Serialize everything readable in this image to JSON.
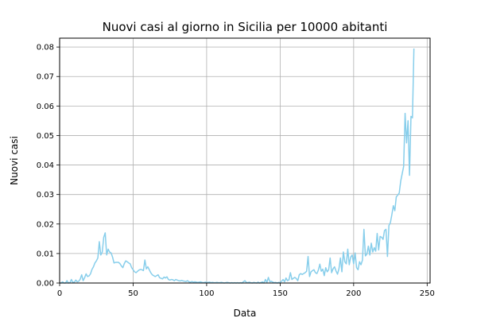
{
  "chart_data": {
    "type": "line",
    "title": "Nuovi casi al giorno in Sicilia per 10000 abitanti",
    "xlabel": "Data",
    "ylabel": "Nuovi casi",
    "xlim": [
      0,
      252
    ],
    "ylim": [
      0,
      0.083
    ],
    "grid": true,
    "x_ticks": [
      0,
      50,
      100,
      150,
      200,
      250
    ],
    "y_ticks": [
      0.0,
      0.01,
      0.02,
      0.03,
      0.04,
      0.05,
      0.06,
      0.07,
      0.08
    ],
    "x_tick_labels": [
      "0",
      "50",
      "100",
      "150",
      "200",
      "250"
    ],
    "y_tick_labels": [
      "0.00",
      "0.01",
      "0.02",
      "0.03",
      "0.04",
      "0.05",
      "0.06",
      "0.07",
      "0.08"
    ],
    "series": [
      {
        "color": "#87ceeb",
        "points": [
          [
            0,
            0.0
          ],
          [
            1,
            0.0
          ],
          [
            2,
            0.0004
          ],
          [
            3,
            0.0
          ],
          [
            4,
            0.0
          ],
          [
            5,
            0.0008
          ],
          [
            6,
            0.0
          ],
          [
            7,
            0.0001
          ],
          [
            8,
            0.0012
          ],
          [
            9,
            0.0002
          ],
          [
            10,
            0.0003
          ],
          [
            11,
            0.001
          ],
          [
            12,
            0.0004
          ],
          [
            13,
            0.0006
          ],
          [
            14,
            0.0013
          ],
          [
            15,
            0.0028
          ],
          [
            16,
            0.0008
          ],
          [
            17,
            0.0018
          ],
          [
            18,
            0.0031
          ],
          [
            19,
            0.0022
          ],
          [
            20,
            0.0024
          ],
          [
            21,
            0.0031
          ],
          [
            22,
            0.0046
          ],
          [
            23,
            0.0055
          ],
          [
            24,
            0.0068
          ],
          [
            25,
            0.0075
          ],
          [
            26,
            0.0085
          ],
          [
            27,
            0.014
          ],
          [
            28,
            0.0095
          ],
          [
            29,
            0.0105
          ],
          [
            30,
            0.0155
          ],
          [
            31,
            0.017
          ],
          [
            32,
            0.0095
          ],
          [
            33,
            0.0115
          ],
          [
            34,
            0.0105
          ],
          [
            35,
            0.0102
          ],
          [
            36,
            0.0088
          ],
          [
            37,
            0.0068
          ],
          [
            38,
            0.007
          ],
          [
            39,
            0.007
          ],
          [
            40,
            0.007
          ],
          [
            41,
            0.0066
          ],
          [
            42,
            0.0058
          ],
          [
            43,
            0.0052
          ],
          [
            44,
            0.0066
          ],
          [
            45,
            0.0075
          ],
          [
            46,
            0.0072
          ],
          [
            47,
            0.0068
          ],
          [
            48,
            0.0065
          ],
          [
            49,
            0.0052
          ],
          [
            50,
            0.0045
          ],
          [
            51,
            0.0038
          ],
          [
            52,
            0.0035
          ],
          [
            53,
            0.004
          ],
          [
            54,
            0.0044
          ],
          [
            55,
            0.0046
          ],
          [
            56,
            0.0045
          ],
          [
            57,
            0.0042
          ],
          [
            58,
            0.0078
          ],
          [
            59,
            0.0048
          ],
          [
            60,
            0.0055
          ],
          [
            61,
            0.0045
          ],
          [
            62,
            0.0035
          ],
          [
            63,
            0.0028
          ],
          [
            64,
            0.0025
          ],
          [
            65,
            0.0022
          ],
          [
            66,
            0.0025
          ],
          [
            67,
            0.0028
          ],
          [
            68,
            0.0018
          ],
          [
            69,
            0.0016
          ],
          [
            70,
            0.0014
          ],
          [
            71,
            0.002
          ],
          [
            72,
            0.0017
          ],
          [
            73,
            0.0021
          ],
          [
            74,
            0.0012
          ],
          [
            75,
            0.001
          ],
          [
            76,
            0.0012
          ],
          [
            77,
            0.0011
          ],
          [
            78,
            0.0008
          ],
          [
            79,
            0.0012
          ],
          [
            80,
            0.001
          ],
          [
            81,
            0.0008
          ],
          [
            82,
            0.0007
          ],
          [
            83,
            0.0009
          ],
          [
            84,
            0.0007
          ],
          [
            85,
            0.0006
          ],
          [
            86,
            0.0005
          ],
          [
            87,
            0.0008
          ],
          [
            88,
            0.0004
          ],
          [
            89,
            0.0003
          ],
          [
            90,
            0.0005
          ],
          [
            91,
            0.0003
          ],
          [
            92,
            0.0004
          ],
          [
            93,
            0.0003
          ],
          [
            94,
            0.0002
          ],
          [
            95,
            0.0003
          ],
          [
            96,
            0.0004
          ],
          [
            97,
            0.0002
          ],
          [
            98,
            0.0001
          ],
          [
            99,
            0.0003
          ],
          [
            100,
            0.0002
          ],
          [
            101,
            0.0002
          ],
          [
            102,
            0.0003
          ],
          [
            103,
            0.0001
          ],
          [
            104,
            0.0002
          ],
          [
            105,
            0.0001
          ],
          [
            106,
            0.0001
          ],
          [
            107,
            0.0002
          ],
          [
            108,
            0.0001
          ],
          [
            109,
            0.0001
          ],
          [
            110,
            0.0002
          ],
          [
            111,
            0.0001
          ],
          [
            112,
            0.0
          ],
          [
            113,
            0.0001
          ],
          [
            114,
            0.0002
          ],
          [
            115,
            0.0001
          ],
          [
            116,
            0.0
          ],
          [
            117,
            0.0001
          ],
          [
            118,
            0.0
          ],
          [
            119,
            0.0001
          ],
          [
            120,
            0.0
          ],
          [
            121,
            0.0001
          ],
          [
            122,
            0.0
          ],
          [
            123,
            0.0001
          ],
          [
            124,
            0.0
          ],
          [
            125,
            0.0004
          ],
          [
            126,
            0.0008
          ],
          [
            127,
            0.0002
          ],
          [
            128,
            0.0001
          ],
          [
            129,
            0.0003
          ],
          [
            130,
            0.0001
          ],
          [
            131,
            0.0
          ],
          [
            132,
            0.0002
          ],
          [
            133,
            0.0001
          ],
          [
            134,
            0.0
          ],
          [
            135,
            0.0003
          ],
          [
            136,
            0.0
          ],
          [
            137,
            0.0002
          ],
          [
            138,
            0.0004
          ],
          [
            139,
            0.0
          ],
          [
            140,
            0.0012
          ],
          [
            141,
            0.0002
          ],
          [
            142,
            0.0019
          ],
          [
            143,
            0.0004
          ],
          [
            144,
            0.0006
          ],
          [
            145,
            0.0003
          ],
          [
            146,
            0.0001
          ],
          [
            147,
            0.0002
          ],
          [
            148,
            0.0
          ],
          [
            149,
            0.0002
          ],
          [
            150,
            0.0001
          ],
          [
            151,
            0.0006
          ],
          [
            152,
            0.0012
          ],
          [
            153,
            0.0004
          ],
          [
            154,
            0.0017
          ],
          [
            155,
            0.0008
          ],
          [
            156,
            0.0011
          ],
          [
            157,
            0.0035
          ],
          [
            158,
            0.0012
          ],
          [
            159,
            0.0016
          ],
          [
            160,
            0.0019
          ],
          [
            161,
            0.0015
          ],
          [
            162,
            0.0008
          ],
          [
            163,
            0.0028
          ],
          [
            164,
            0.0032
          ],
          [
            165,
            0.0029
          ],
          [
            166,
            0.0032
          ],
          [
            167,
            0.0035
          ],
          [
            168,
            0.004
          ],
          [
            169,
            0.009
          ],
          [
            170,
            0.0022
          ],
          [
            171,
            0.0038
          ],
          [
            172,
            0.0042
          ],
          [
            173,
            0.0045
          ],
          [
            174,
            0.0035
          ],
          [
            175,
            0.0032
          ],
          [
            176,
            0.0044
          ],
          [
            177,
            0.0064
          ],
          [
            178,
            0.004
          ],
          [
            179,
            0.0047
          ],
          [
            180,
            0.0025
          ],
          [
            181,
            0.0052
          ],
          [
            182,
            0.0038
          ],
          [
            183,
            0.0045
          ],
          [
            184,
            0.0085
          ],
          [
            185,
            0.0035
          ],
          [
            186,
            0.0048
          ],
          [
            187,
            0.0055
          ],
          [
            188,
            0.0041
          ],
          [
            189,
            0.003
          ],
          [
            190,
            0.0048
          ],
          [
            191,
            0.0085
          ],
          [
            192,
            0.0038
          ],
          [
            193,
            0.0105
          ],
          [
            194,
            0.0072
          ],
          [
            195,
            0.0065
          ],
          [
            196,
            0.0115
          ],
          [
            197,
            0.0062
          ],
          [
            198,
            0.0088
          ],
          [
            199,
            0.0095
          ],
          [
            200,
            0.0065
          ],
          [
            201,
            0.0102
          ],
          [
            202,
            0.0052
          ],
          [
            203,
            0.0045
          ],
          [
            204,
            0.0072
          ],
          [
            205,
            0.0062
          ],
          [
            206,
            0.0078
          ],
          [
            207,
            0.0182
          ],
          [
            208,
            0.0092
          ],
          [
            209,
            0.0098
          ],
          [
            210,
            0.0125
          ],
          [
            211,
            0.0095
          ],
          [
            212,
            0.0135
          ],
          [
            213,
            0.0105
          ],
          [
            214,
            0.012
          ],
          [
            215,
            0.0108
          ],
          [
            216,
            0.0168
          ],
          [
            217,
            0.0112
          ],
          [
            218,
            0.0158
          ],
          [
            219,
            0.0155
          ],
          [
            220,
            0.0148
          ],
          [
            221,
            0.0178
          ],
          [
            222,
            0.0182
          ],
          [
            223,
            0.009
          ],
          [
            224,
            0.0195
          ],
          [
            225,
            0.0205
          ],
          [
            226,
            0.0232
          ],
          [
            227,
            0.0262
          ],
          [
            228,
            0.0245
          ],
          [
            229,
            0.0292
          ],
          [
            230,
            0.0298
          ],
          [
            231,
            0.0305
          ],
          [
            232,
            0.0345
          ],
          [
            233,
            0.037
          ],
          [
            234,
            0.0395
          ],
          [
            235,
            0.0575
          ],
          [
            236,
            0.0475
          ],
          [
            237,
            0.055
          ],
          [
            238,
            0.0365
          ],
          [
            239,
            0.0565
          ],
          [
            240,
            0.056
          ],
          [
            241,
            0.0795
          ]
        ]
      }
    ]
  }
}
